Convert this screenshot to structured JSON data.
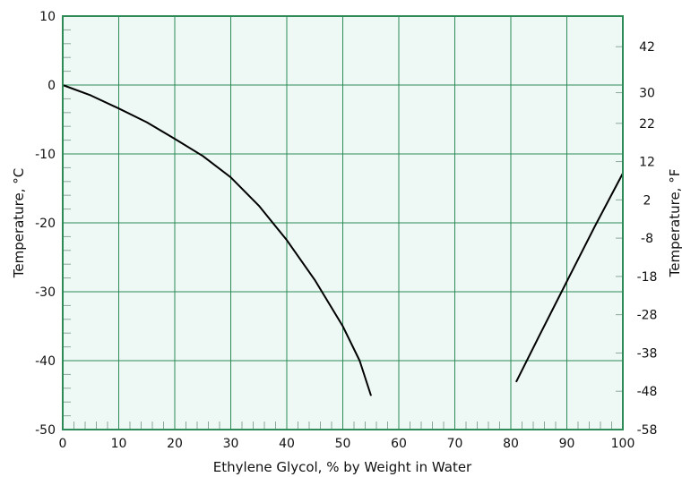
{
  "chart_data": {
    "type": "line",
    "title": "",
    "xlabel": "Ethylene Glycol, % by Weight in Water",
    "ylabel": "Temperature, °C",
    "y2label": "Temperature, °F",
    "xlim": [
      0,
      100
    ],
    "ylim": [
      -50,
      10
    ],
    "x_ticks": [
      "0",
      "10",
      "20",
      "30",
      "40",
      "50",
      "60",
      "70",
      "80",
      "90",
      "100"
    ],
    "y_ticks": [
      "10",
      "0",
      "-10",
      "-20",
      "-30",
      "-40",
      "-50"
    ],
    "y2_ticks": [
      {
        "label": "42",
        "value_c": 5.56
      },
      {
        "label": "30",
        "value_c": -1.11
      },
      {
        "label": "22",
        "value_c": -5.56
      },
      {
        "label": "12",
        "value_c": -11.11
      },
      {
        "label": "2",
        "value_c": -16.67
      },
      {
        "label": "-8",
        "value_c": -22.22
      },
      {
        "label": "-18",
        "value_c": -27.78
      },
      {
        "label": "-28",
        "value_c": -33.33
      },
      {
        "label": "-38",
        "value_c": -38.89
      },
      {
        "label": "-48",
        "value_c": -44.44
      },
      {
        "label": "-58",
        "value_c": -50.0
      }
    ],
    "grid": true,
    "colors": {
      "background": "#eef8f4",
      "grid": "#2e8b57",
      "frame": "#2e8b57",
      "line": "#000000"
    },
    "series": [
      {
        "values_xy": [
          [
            0,
            0
          ],
          [
            5,
            -1.5
          ],
          [
            10,
            -3.4
          ],
          [
            15,
            -5.4
          ],
          [
            20,
            -7.8
          ],
          [
            25,
            -10.3
          ],
          [
            30,
            -13.4
          ],
          [
            35,
            -17.5
          ],
          [
            40,
            -22.5
          ],
          [
            45,
            -28.3
          ],
          [
            50,
            -35.0
          ],
          [
            53,
            -40.0
          ],
          [
            55,
            -45.0
          ]
        ]
      },
      {
        "values_xy": [
          [
            81,
            -43.0
          ],
          [
            85,
            -36.5
          ],
          [
            90,
            -28.5
          ],
          [
            95,
            -20.5
          ],
          [
            100,
            -12.8
          ]
        ]
      }
    ]
  }
}
